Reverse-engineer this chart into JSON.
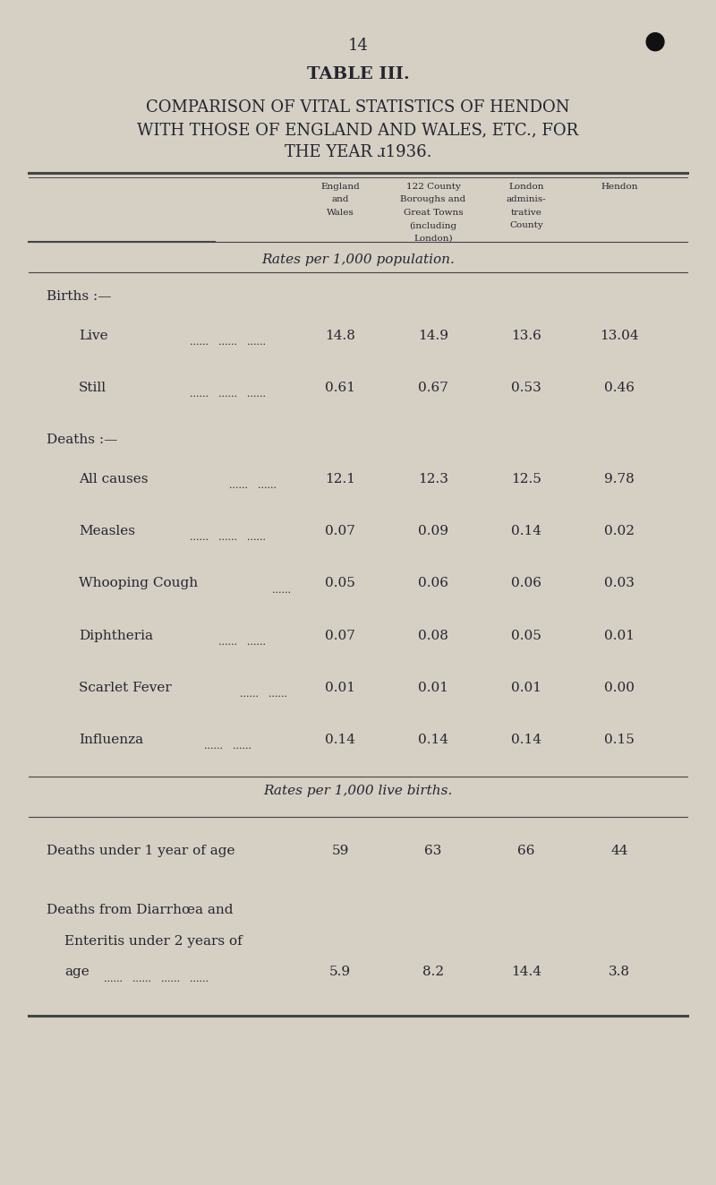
{
  "page_number": "14",
  "table_title": "TABLE III.",
  "subtitle_lines": [
    "COMPARISON OF VITAL STATISTICS OF HENDON",
    "WITH THOSE OF ENGLAND AND WALES, ETC., FOR",
    "THE YEAR ɹ1936."
  ],
  "col_headers_col1": [
    "England",
    "and",
    "Wales"
  ],
  "col_headers_col2": [
    "122 County",
    "Boroughs and",
    "Great Towns",
    "(including",
    "London)"
  ],
  "col_headers_col3": [
    "London",
    "adminis-",
    "trative",
    "County"
  ],
  "col_headers_col4": [
    "Hendon"
  ],
  "section1_header": "Rates per 1,000 population.",
  "section2_header": "Rates per 1,000 live births.",
  "rows_section1": [
    {
      "group": "Births :—",
      "is_group_header": true,
      "label": "",
      "dots": false,
      "values": [
        "",
        "",
        "",
        ""
      ]
    },
    {
      "group": "",
      "is_group_header": false,
      "label": "Live",
      "dots": true,
      "values": [
        "14.8",
        "14.9",
        "13.6",
        "13.04"
      ]
    },
    {
      "group": "",
      "is_group_header": false,
      "label": "Still",
      "dots": true,
      "values": [
        "0.61",
        "0.67",
        "0.53",
        "0.46"
      ]
    },
    {
      "group": "Deaths :—",
      "is_group_header": true,
      "label": "",
      "dots": false,
      "values": [
        "",
        "",
        "",
        ""
      ]
    },
    {
      "group": "",
      "is_group_header": false,
      "label": "All causes",
      "dots": true,
      "values": [
        "12.1",
        "12.3",
        "12.5",
        "9.78"
      ]
    },
    {
      "group": "",
      "is_group_header": false,
      "label": "Measles",
      "dots": true,
      "values": [
        "0.07",
        "0.09",
        "0.14",
        "0.02"
      ]
    },
    {
      "group": "",
      "is_group_header": false,
      "label": "Whooping Cough",
      "dots": true,
      "values": [
        "0.05",
        "0.06",
        "0.06",
        "0.03"
      ]
    },
    {
      "group": "",
      "is_group_header": false,
      "label": "Diphtheria",
      "dots": true,
      "values": [
        "0.07",
        "0.08",
        "0.05",
        "0.01"
      ]
    },
    {
      "group": "",
      "is_group_header": false,
      "label": "Scarlet Fever",
      "dots": true,
      "values": [
        "0.01",
        "0.01",
        "0.01",
        "0.00"
      ]
    },
    {
      "group": "",
      "is_group_header": false,
      "label": "Influenza",
      "dots": true,
      "values": [
        "0.14",
        "0.14",
        "0.14",
        "0.15"
      ]
    }
  ],
  "rows_section2": [
    {
      "label_line1": "Deaths under 1 year of age",
      "label_line2": "",
      "label_line3": "",
      "has_multiline": false,
      "dots": false,
      "values": [
        "59",
        "63",
        "66",
        "44"
      ]
    },
    {
      "label_line1": "Deaths from Diarrhœa and",
      "label_line2": "Enteritis under 2 years of",
      "label_line3": "age",
      "has_multiline": true,
      "dots": true,
      "values": [
        "5.9",
        "8.2",
        "14.4",
        "3.8"
      ]
    }
  ],
  "bg_color": "#d5cfc4",
  "text_color": "#252530",
  "bullet_color": "#111111",
  "line_color": "#444444",
  "font_family": "serif"
}
